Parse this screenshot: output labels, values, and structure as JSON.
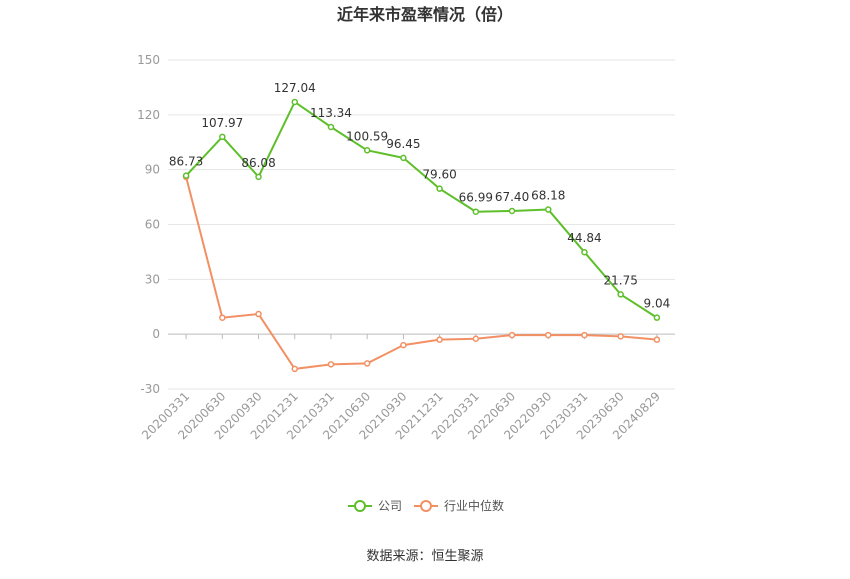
{
  "chart_data": {
    "type": "line",
    "title": "近年来市盈率情况（倍）",
    "categories": [
      "20200331",
      "20200630",
      "20200930",
      "20201231",
      "20210331",
      "20210630",
      "20210930",
      "20211231",
      "20220331",
      "20220630",
      "20220930",
      "20230331",
      "20230630",
      "20240829"
    ],
    "series": [
      {
        "name": "公司",
        "color": "#5dbf2a",
        "values": [
          86.73,
          107.97,
          86.08,
          127.04,
          113.34,
          100.59,
          96.45,
          79.6,
          66.99,
          67.4,
          68.18,
          44.84,
          21.75,
          9.04
        ],
        "labels": [
          "86.73",
          "107.97",
          "86.08",
          "127.04",
          "113.34",
          "100.59",
          "96.45",
          "79.60",
          "66.99",
          "67.40",
          "68.18",
          "44.84",
          "21.75",
          "9.04"
        ]
      },
      {
        "name": "行业中位数",
        "color": "#f29064",
        "values": [
          86.0,
          9.0,
          11.0,
          -19.0,
          -16.5,
          -16.0,
          -6.0,
          -3.0,
          -2.5,
          -0.5,
          -0.5,
          -0.5,
          -1.2,
          -3.0
        ]
      }
    ],
    "ylim": [
      -30,
      150
    ],
    "yticks": [
      "150",
      "120",
      "90",
      "60",
      "30",
      "0",
      "-30"
    ],
    "grid": true,
    "legend_position": "bottom"
  },
  "source": "数据来源：恒生聚源"
}
